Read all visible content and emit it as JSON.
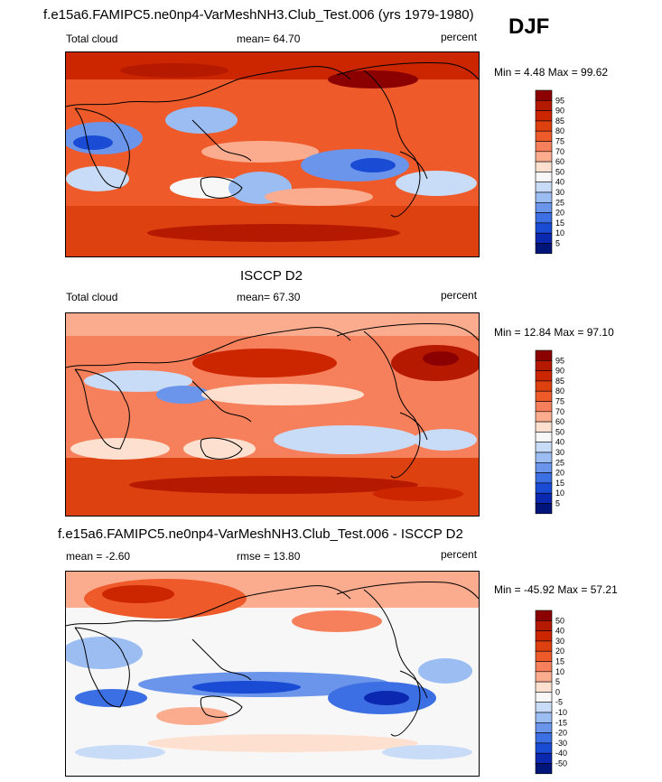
{
  "season": "DJF",
  "panels": [
    {
      "title": "f.e15a6.FAMIPC5.ne0np4-VarMeshNH3.Club_Test.006 (yrs 1979-1980)",
      "left_label": "Total cloud",
      "center_label": "mean=  64.70",
      "right_label": "percent",
      "minmax": "Min =   4.48 Max =  99.62",
      "colorbar": {
        "levels": [
          "95",
          "90",
          "85",
          "80",
          "75",
          "70",
          "60",
          "50",
          "40",
          "30",
          "25",
          "20",
          "15",
          "10",
          "5"
        ],
        "colors": [
          "#8b0000",
          "#b51a00",
          "#cc2600",
          "#de4110",
          "#ee5a2a",
          "#f7805c",
          "#fbac8e",
          "#fde0cf",
          "#f7f7f7",
          "#c9dcf7",
          "#9bbdf2",
          "#6a95eb",
          "#3c6fe3",
          "#1a4bd4",
          "#0a28b0",
          "#00157a"
        ]
      }
    },
    {
      "title": "ISCCP D2",
      "left_label": "Total cloud",
      "center_label": "mean=  67.30",
      "right_label": "percent",
      "minmax": "Min =  12.84 Max =  97.10",
      "colorbar": {
        "levels": [
          "95",
          "90",
          "85",
          "80",
          "75",
          "70",
          "60",
          "50",
          "40",
          "30",
          "25",
          "20",
          "15",
          "10",
          "5"
        ],
        "colors": [
          "#8b0000",
          "#b51a00",
          "#cc2600",
          "#de4110",
          "#ee5a2a",
          "#f7805c",
          "#fbac8e",
          "#fde0cf",
          "#f7f7f7",
          "#c9dcf7",
          "#9bbdf2",
          "#6a95eb",
          "#3c6fe3",
          "#1a4bd4",
          "#0a28b0",
          "#00157a"
        ]
      }
    },
    {
      "title": "f.e15a6.FAMIPC5.ne0np4-VarMeshNH3.Club_Test.006 - ISCCP D2",
      "left_label": "mean =  -2.60",
      "center_label": "rmse =  13.80",
      "right_label": "percent",
      "minmax": "Min = -45.92 Max =  57.21",
      "colorbar": {
        "levels": [
          "50",
          "40",
          "30",
          "20",
          "15",
          "10",
          "5",
          "0",
          "-5",
          "-10",
          "-15",
          "-20",
          "-30",
          "-40",
          "-50"
        ],
        "colors": [
          "#8b0000",
          "#b51a00",
          "#cc2600",
          "#de4110",
          "#ee5a2a",
          "#f7805c",
          "#fbac8e",
          "#fde0cf",
          "#f7f7f7",
          "#c9dcf7",
          "#9bbdf2",
          "#6a95eb",
          "#3c6fe3",
          "#1a4bd4",
          "#0a28b0",
          "#00157a"
        ]
      }
    }
  ]
}
